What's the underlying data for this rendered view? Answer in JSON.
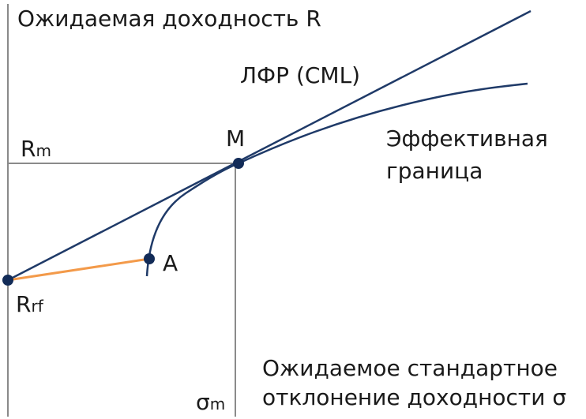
{
  "diagram": {
    "y_axis_label": "Ожидаемая доходность R",
    "x_axis_label_line1": "Ожидаемое стандартное",
    "x_axis_label_line2": "отклонение доходности σ",
    "cml_label": "ЛФР (CML)",
    "frontier_label_line1": "Эффективная",
    "frontier_label_line2": "граница",
    "rm_main": "R",
    "rm_sub": "m",
    "rf_main": "R",
    "rf_sub": "rf",
    "sigma_m_main": "σ",
    "sigma_m_sub": "m",
    "point_m_label": "M",
    "point_a_label": "A",
    "colors": {
      "axis": "#8a8a8a",
      "guide": "#8a8a8a",
      "cml": "#1f3a68",
      "frontier": "#1f3a68",
      "rf_to_a": "#f39a4a",
      "point": "#122b57"
    }
  }
}
